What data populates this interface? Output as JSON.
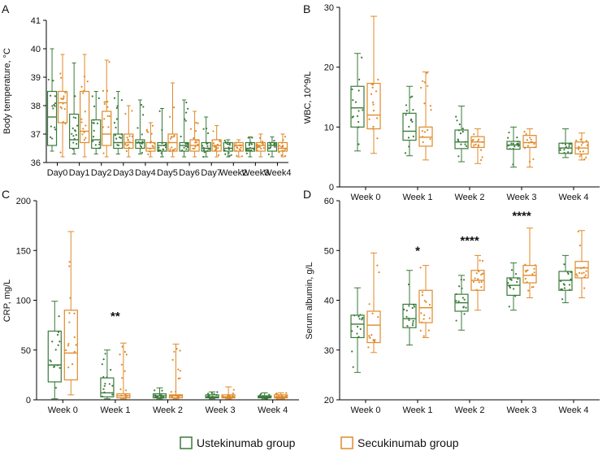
{
  "colors": {
    "ustekinumab": "#3a7a3a",
    "secukinumab": "#e08a2a"
  },
  "legend": [
    {
      "label": "Ustekinumab group",
      "color": "#3a7a3a"
    },
    {
      "label": "Secukinumab group",
      "color": "#e08a2a"
    }
  ],
  "chart_data": [
    {
      "panel": "A",
      "type": "box",
      "ylabel": "Body temperature, °C",
      "ylim": [
        36,
        41
      ],
      "yticks": [
        36,
        37,
        38,
        39,
        40,
        41
      ],
      "categories": [
        "Day0",
        "Day1",
        "Day2",
        "Day3",
        "Day4",
        "Day5",
        "Day6",
        "Day7",
        "Week2",
        "Week3",
        "Week4"
      ],
      "series": [
        {
          "name": "Ustekinumab group",
          "boxes": [
            {
              "min": 36.4,
              "q1": 36.6,
              "median": 37.6,
              "q3": 38.5,
              "max": 40.0
            },
            {
              "min": 36.3,
              "q1": 36.5,
              "median": 36.8,
              "q3": 37.7,
              "max": 39.5
            },
            {
              "min": 36.3,
              "q1": 36.5,
              "median": 36.8,
              "q3": 37.5,
              "max": 38.5
            },
            {
              "min": 36.3,
              "q1": 36.5,
              "median": 36.7,
              "q3": 37.0,
              "max": 38.5
            },
            {
              "min": 36.3,
              "q1": 36.5,
              "median": 36.7,
              "q3": 36.8,
              "max": 38.2
            },
            {
              "min": 36.2,
              "q1": 36.4,
              "median": 36.6,
              "q3": 36.7,
              "max": 37.9
            },
            {
              "min": 36.2,
              "q1": 36.4,
              "median": 36.6,
              "q3": 36.7,
              "max": 38.2
            },
            {
              "min": 36.2,
              "q1": 36.4,
              "median": 36.5,
              "q3": 36.7,
              "max": 37.6
            },
            {
              "min": 36.2,
              "q1": 36.4,
              "median": 36.5,
              "q3": 36.7,
              "max": 36.8
            },
            {
              "min": 36.2,
              "q1": 36.4,
              "median": 36.5,
              "q3": 36.7,
              "max": 36.9
            },
            {
              "min": 36.2,
              "q1": 36.4,
              "median": 36.6,
              "q3": 36.7,
              "max": 36.9
            }
          ]
        },
        {
          "name": "Secukinumab group",
          "boxes": [
            {
              "min": 36.2,
              "q1": 37.4,
              "median": 38.1,
              "q3": 38.5,
              "max": 39.8
            },
            {
              "min": 36.2,
              "q1": 36.7,
              "median": 37.1,
              "q3": 38.5,
              "max": 39.8
            },
            {
              "min": 36.2,
              "q1": 36.6,
              "median": 37.0,
              "q3": 37.8,
              "max": 39.6
            },
            {
              "min": 36.2,
              "q1": 36.5,
              "median": 36.7,
              "q3": 37.0,
              "max": 38.0
            },
            {
              "min": 36.2,
              "q1": 36.4,
              "median": 36.5,
              "q3": 36.7,
              "max": 37.4
            },
            {
              "min": 36.2,
              "q1": 36.4,
              "median": 36.7,
              "q3": 37.0,
              "max": 38.8
            },
            {
              "min": 36.2,
              "q1": 36.4,
              "median": 36.6,
              "q3": 36.8,
              "max": 37.8
            },
            {
              "min": 36.2,
              "q1": 36.4,
              "median": 36.6,
              "q3": 36.8,
              "max": 37.3
            },
            {
              "min": 36.2,
              "q1": 36.4,
              "median": 36.6,
              "q3": 36.7,
              "max": 36.8
            },
            {
              "min": 36.2,
              "q1": 36.4,
              "median": 36.6,
              "q3": 36.7,
              "max": 37.0
            },
            {
              "min": 36.2,
              "q1": 36.4,
              "median": 36.5,
              "q3": 36.7,
              "max": 37.0
            }
          ]
        }
      ],
      "annotations": []
    },
    {
      "panel": "B",
      "type": "box",
      "ylabel": "WBC, 10^9/L",
      "ylim": [
        0,
        30
      ],
      "yticks": [
        0,
        10,
        20,
        30
      ],
      "categories": [
        "Week 0",
        "Week 1",
        "Week 2",
        "Week 3",
        "Week 4"
      ],
      "series": [
        {
          "name": "Ustekinumab group",
          "boxes": [
            {
              "min": 6.0,
              "q1": 10.0,
              "median": 13.2,
              "q3": 16.8,
              "max": 22.3
            },
            {
              "min": 5.2,
              "q1": 7.8,
              "median": 9.3,
              "q3": 12.3,
              "max": 16.8
            },
            {
              "min": 4.2,
              "q1": 6.4,
              "median": 7.5,
              "q3": 9.5,
              "max": 13.5
            },
            {
              "min": 3.3,
              "q1": 6.3,
              "median": 7.0,
              "q3": 7.6,
              "max": 10.0
            },
            {
              "min": 4.9,
              "q1": 5.6,
              "median": 6.5,
              "q3": 7.3,
              "max": 9.7
            }
          ]
        },
        {
          "name": "Secukinumab group",
          "boxes": [
            {
              "min": 5.6,
              "q1": 9.7,
              "median": 12.0,
              "q3": 17.3,
              "max": 28.5
            },
            {
              "min": 4.5,
              "q1": 6.8,
              "median": 8.3,
              "q3": 10.0,
              "max": 19.2
            },
            {
              "min": 3.9,
              "q1": 6.6,
              "median": 7.5,
              "q3": 8.4,
              "max": 9.7
            },
            {
              "min": 3.3,
              "q1": 6.6,
              "median": 7.4,
              "q3": 8.6,
              "max": 9.7
            },
            {
              "min": 4.5,
              "q1": 5.5,
              "median": 6.5,
              "q3": 7.5,
              "max": 9.0
            }
          ]
        }
      ],
      "annotations": []
    },
    {
      "panel": "C",
      "type": "box",
      "ylabel": "CRP, mg/L",
      "ylim": [
        0,
        200
      ],
      "yticks": [
        0,
        50,
        100,
        150,
        200
      ],
      "categories": [
        "Week 0",
        "Week 1",
        "Week 2",
        "Week 3",
        "Week 4"
      ],
      "series": [
        {
          "name": "Ustekinumab group",
          "boxes": [
            {
              "min": 1.0,
              "q1": 18.0,
              "median": 35.0,
              "q3": 69.0,
              "max": 99.0
            },
            {
              "min": 1.0,
              "q1": 3.0,
              "median": 7.0,
              "q3": 22.0,
              "max": 50.0
            },
            {
              "min": 1.0,
              "q1": 2.0,
              "median": 4.0,
              "q3": 6.0,
              "max": 12.0
            },
            {
              "min": 1.0,
              "q1": 2.0,
              "median": 3.0,
              "q3": 5.0,
              "max": 8.0
            },
            {
              "min": 1.0,
              "q1": 2.0,
              "median": 3.0,
              "q3": 4.0,
              "max": 7.0
            }
          ]
        },
        {
          "name": "Secukinumab group",
          "boxes": [
            {
              "min": 5.0,
              "q1": 20.0,
              "median": 47.0,
              "q3": 90.0,
              "max": 169.0
            },
            {
              "min": 1.0,
              "q1": 2.0,
              "median": 4.0,
              "q3": 6.0,
              "max": 57.0
            },
            {
              "min": 1.0,
              "q1": 2.0,
              "median": 4.0,
              "q3": 5.0,
              "max": 56.0
            },
            {
              "min": 1.0,
              "q1": 2.0,
              "median": 3.0,
              "q3": 5.0,
              "max": 13.0
            },
            {
              "min": 1.0,
              "q1": 2.0,
              "median": 3.0,
              "q3": 5.0,
              "max": 7.0
            }
          ]
        }
      ],
      "annotations": [
        {
          "category": "Week 1",
          "text": "**",
          "y": 84
        }
      ]
    },
    {
      "panel": "D",
      "type": "box",
      "ylabel": "Serum albumin, g/L",
      "ylim": [
        20,
        60
      ],
      "yticks": [
        20,
        30,
        40,
        50,
        60
      ],
      "categories": [
        "Week 0",
        "Week 1",
        "Week 2",
        "Week 3",
        "Week 4"
      ],
      "series": [
        {
          "name": "Ustekinumab group",
          "boxes": [
            {
              "min": 25.5,
              "q1": 32.5,
              "median": 35.2,
              "q3": 37.0,
              "max": 42.5
            },
            {
              "min": 31.0,
              "q1": 34.5,
              "median": 36.3,
              "q3": 39.2,
              "max": 46.0
            },
            {
              "min": 34.0,
              "q1": 37.8,
              "median": 39.5,
              "q3": 41.2,
              "max": 45.0
            },
            {
              "min": 38.0,
              "q1": 41.0,
              "median": 43.0,
              "q3": 44.5,
              "max": 47.5
            },
            {
              "min": 39.5,
              "q1": 42.0,
              "median": 44.0,
              "q3": 45.8,
              "max": 49.0
            }
          ]
        },
        {
          "name": "Secukinumab group",
          "boxes": [
            {
              "min": 29.5,
              "q1": 31.5,
              "median": 35.0,
              "q3": 37.8,
              "max": 49.5
            },
            {
              "min": 32.5,
              "q1": 35.5,
              "median": 38.5,
              "q3": 42.0,
              "max": 47.0
            },
            {
              "min": 38.0,
              "q1": 42.0,
              "median": 44.0,
              "q3": 46.0,
              "max": 49.0
            },
            {
              "min": 40.5,
              "q1": 43.5,
              "median": 45.0,
              "q3": 47.0,
              "max": 54.5
            },
            {
              "min": 40.5,
              "q1": 44.5,
              "median": 46.5,
              "q3": 47.8,
              "max": 54.0
            }
          ]
        }
      ],
      "annotations": [
        {
          "category": "Week 1",
          "text": "*",
          "y": 50
        },
        {
          "category": "Week 2",
          "text": "****",
          "y": 52
        },
        {
          "category": "Week 3",
          "text": "****",
          "y": 57
        }
      ]
    }
  ]
}
